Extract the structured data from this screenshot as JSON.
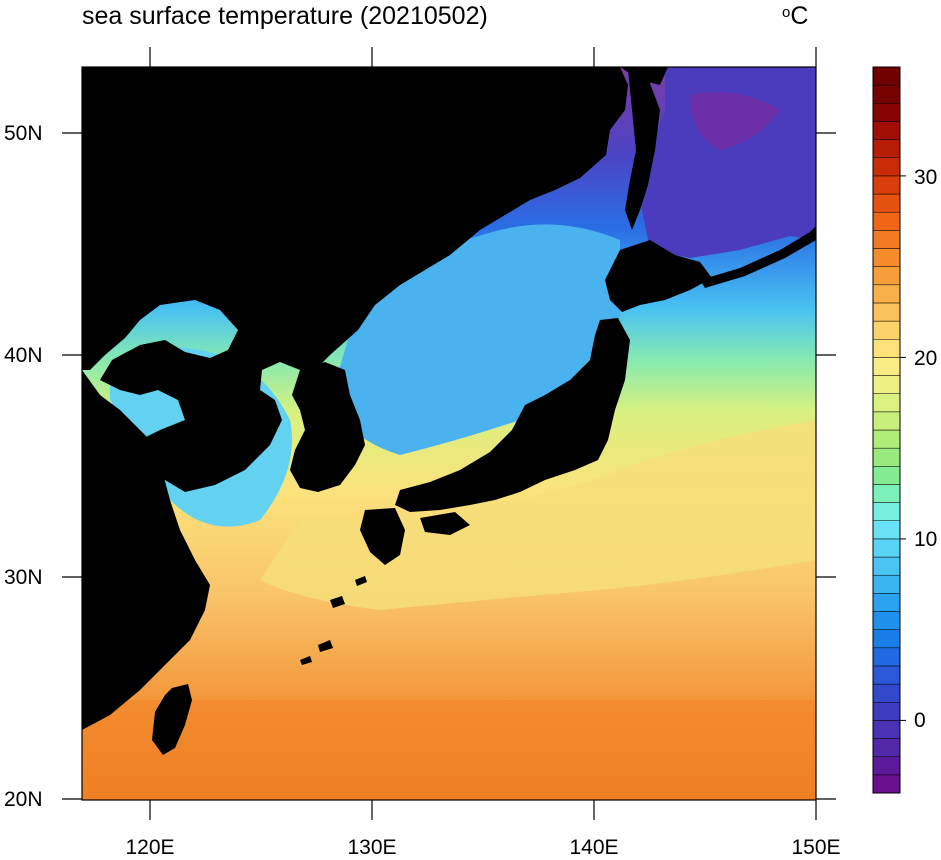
{
  "title": "sea surface temperature (20210502)",
  "unit": {
    "symbol": "o",
    "letter": "C"
  },
  "map": {
    "type": "filled contour map",
    "lon_range": [
      117,
      150
    ],
    "lat_range": [
      20,
      53
    ],
    "land_color": "#000000",
    "lat_ticks": [
      {
        "value": 50,
        "label": "50N"
      },
      {
        "value": 40,
        "label": "40N"
      },
      {
        "value": 30,
        "label": "30N"
      },
      {
        "value": 20,
        "label": "20N"
      }
    ],
    "lon_ticks": [
      {
        "value": 120,
        "label": "120E"
      },
      {
        "value": 130,
        "label": "130E"
      },
      {
        "value": 140,
        "label": "140E"
      },
      {
        "value": 150,
        "label": "150E"
      }
    ]
  },
  "colorbar": {
    "range": [
      -4,
      36
    ],
    "ticks": [
      {
        "value": 30,
        "label": "30"
      },
      {
        "value": 20,
        "label": "20"
      },
      {
        "value": 10,
        "label": "10"
      },
      {
        "value": 0,
        "label": "0"
      }
    ],
    "colors": [
      "#6a0f8e",
      "#5a1a9a",
      "#5228a8",
      "#4a32b4",
      "#3e3cc0",
      "#3448cc",
      "#2a58d8",
      "#1f6ae2",
      "#1a7ee8",
      "#1f90ec",
      "#2aa2ef",
      "#3ab4f0",
      "#4ac4f2",
      "#5ad4f4",
      "#68e2f4",
      "#76eee0",
      "#7cf0b8",
      "#84ec90",
      "#98ea7c",
      "#b0ec78",
      "#c8ee7c",
      "#daf080",
      "#eef086",
      "#faec84",
      "#fce078",
      "#fcd26a",
      "#fac25a",
      "#f8b04a",
      "#f69e3a",
      "#f48c2c",
      "#f27a20",
      "#ee6616",
      "#e65210",
      "#da3e0c",
      "#ca2c08",
      "#b61c06",
      "#a00e04",
      "#880404",
      "#760202",
      "#700000"
    ]
  }
}
